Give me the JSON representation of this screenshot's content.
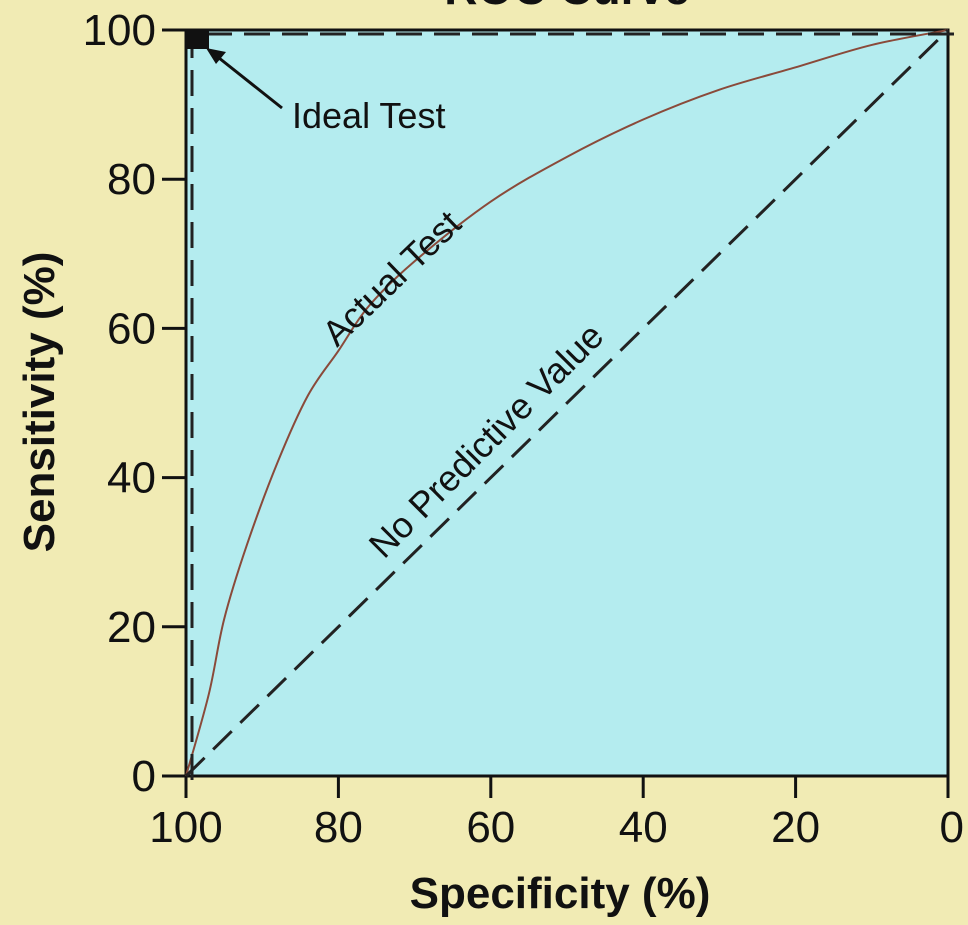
{
  "chart_data": {
    "type": "line",
    "title": "ROC Curve",
    "xlabel": "Specificity (%)",
    "ylabel": "Sensitivity (%)",
    "x_reversed": true,
    "xlim": [
      100,
      0
    ],
    "ylim": [
      0,
      100
    ],
    "x_ticks": [
      "100",
      "80",
      "60",
      "40",
      "20",
      "0"
    ],
    "y_ticks": [
      "0",
      "20",
      "40",
      "60",
      "80",
      "100"
    ],
    "grid": false,
    "background_color": "#b4ecef",
    "page_color": "#f1ebb4",
    "series": [
      {
        "name": "Actual Test",
        "style": "solid",
        "color": "#8a4a3a",
        "x": [
          100,
          97,
          95,
          92,
          88,
          84,
          80,
          76,
          70,
          60,
          50,
          40,
          30,
          20,
          10,
          0
        ],
        "y": [
          0,
          11,
          21,
          31,
          42,
          51,
          57,
          63,
          69,
          77,
          83,
          88,
          92,
          95,
          98,
          100
        ]
      },
      {
        "name": "No Predictive Value",
        "style": "dashed",
        "color": "#222222",
        "x": [
          100,
          0
        ],
        "y": [
          0,
          100
        ]
      },
      {
        "name": "Ideal Test",
        "style": "dashed",
        "color": "#222222",
        "x": [
          100,
          100,
          0
        ],
        "y": [
          0,
          100,
          100
        ]
      }
    ],
    "annotations": [
      {
        "text": "Ideal Test",
        "x": 98,
        "y": 99,
        "arrow": true
      },
      {
        "text": "Actual Test",
        "rotated": true
      },
      {
        "text": "No Predictive Value",
        "rotated": true
      }
    ]
  }
}
